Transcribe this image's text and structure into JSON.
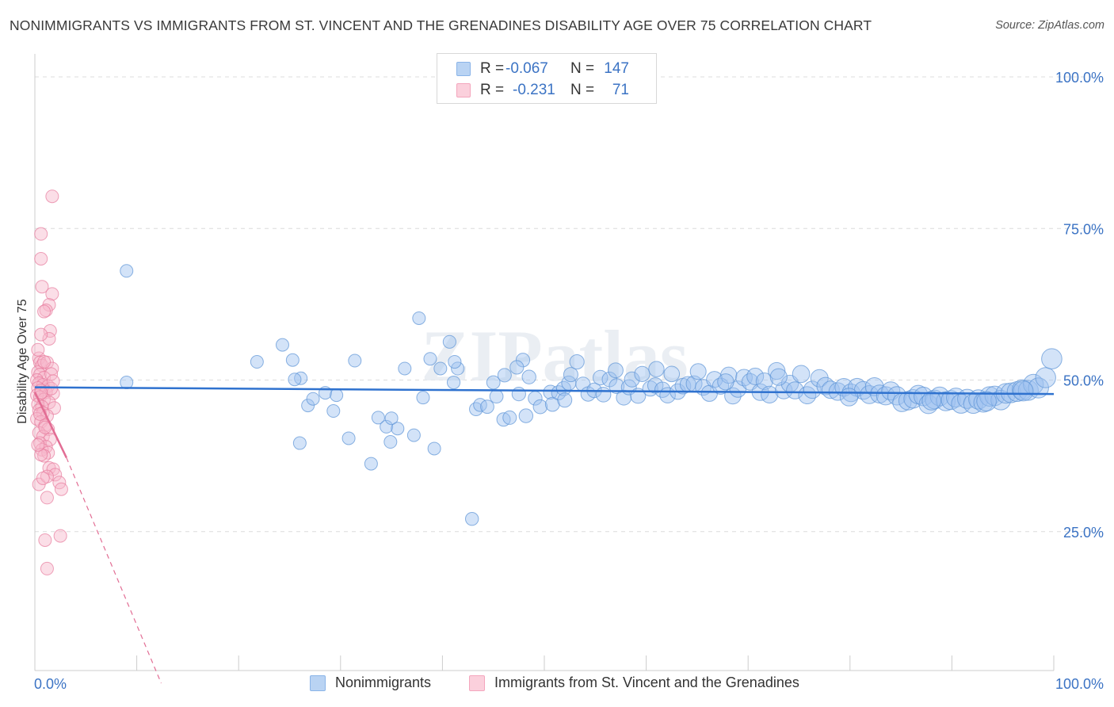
{
  "title": "NONIMMIGRANTS VS IMMIGRANTS FROM ST. VINCENT AND THE GRENADINES DISABILITY AGE OVER 75 CORRELATION CHART",
  "source": "Source: ZipAtlas.com",
  "legend_stats": [
    {
      "r_label": "R =",
      "r_value": "-0.067",
      "n_label": "N =",
      "n_value": "147",
      "color": "#8ab4e8"
    },
    {
      "r_label": "R =",
      "r_value": "-0.231",
      "n_label": "N =",
      "n_value": "71",
      "color": "#f4a6bd"
    }
  ],
  "bottom_legend": [
    {
      "label": "Nonimmigrants",
      "color": "#8ab4e8"
    },
    {
      "label": "Immigrants from St. Vincent and the Grenadines",
      "color": "#f4a6bd"
    }
  ],
  "colors": {
    "blue_fill": "#9ec2ef",
    "blue_stroke": "#5b93d6",
    "blue_line": "#2f72cf",
    "pink_fill": "#f7b6c9",
    "pink_stroke": "#e77a9c",
    "pink_line": "#e26d94",
    "tick_text": "#3b73c4",
    "grid": "#dcdcdc"
  },
  "chart_data": {
    "type": "scatter",
    "title": "NONIMMIGRANTS VS IMMIGRANTS FROM ST. VINCENT AND THE GRENADINES DISABILITY AGE OVER 75 CORRELATION CHART",
    "xlabel": "",
    "ylabel": "Disability Age Over 75",
    "xlim": [
      0,
      100
    ],
    "ylim": [
      0,
      100
    ],
    "x_tick_labels": [
      "0.0%",
      "100.0%"
    ],
    "y_ticks": [
      25,
      50,
      75,
      100
    ],
    "y_tick_labels": [
      "25.0%",
      "50.0%",
      "75.0%",
      "100.0%"
    ],
    "watermark": "ZIPatlas",
    "series": [
      {
        "name": "Nonimmigrants",
        "r": -0.067,
        "n": 147,
        "trend": {
          "x0": 0,
          "y0": 48.8,
          "x1": 100,
          "y1": 47.7
        },
        "points": [
          [
            9.0,
            68.0
          ],
          [
            9.0,
            49.6
          ],
          [
            21.8,
            53.0
          ],
          [
            24.3,
            55.8
          ],
          [
            25.3,
            53.3
          ],
          [
            26.1,
            50.3
          ],
          [
            25.5,
            50.1
          ],
          [
            26.0,
            39.6
          ],
          [
            26.8,
            45.8
          ],
          [
            27.3,
            46.9
          ],
          [
            28.5,
            47.9
          ],
          [
            29.3,
            44.9
          ],
          [
            29.6,
            47.5
          ],
          [
            30.8,
            40.4
          ],
          [
            31.4,
            53.2
          ],
          [
            33.0,
            36.2
          ],
          [
            33.7,
            43.8
          ],
          [
            34.5,
            42.3
          ],
          [
            34.9,
            39.8
          ],
          [
            35.0,
            43.7
          ],
          [
            35.6,
            42.0
          ],
          [
            36.3,
            51.9
          ],
          [
            37.2,
            40.9
          ],
          [
            37.7,
            60.2
          ],
          [
            38.1,
            47.1
          ],
          [
            38.8,
            53.5
          ],
          [
            39.2,
            38.7
          ],
          [
            39.8,
            51.9
          ],
          [
            40.7,
            56.3
          ],
          [
            41.1,
            49.6
          ],
          [
            41.5,
            51.9
          ],
          [
            41.2,
            53.0
          ],
          [
            42.9,
            27.1
          ],
          [
            43.3,
            45.2
          ],
          [
            43.7,
            45.9
          ],
          [
            44.4,
            45.6
          ],
          [
            45.0,
            49.6
          ],
          [
            45.3,
            47.3
          ],
          [
            46.1,
            50.8
          ],
          [
            46.0,
            43.5
          ],
          [
            46.6,
            43.8
          ],
          [
            47.5,
            47.7
          ],
          [
            48.2,
            44.1
          ],
          [
            47.9,
            53.3
          ],
          [
            48.5,
            50.5
          ],
          [
            49.1,
            47.0
          ],
          [
            49.6,
            45.6
          ],
          [
            50.6,
            48.0
          ],
          [
            50.8,
            46.0
          ],
          [
            51.4,
            47.9
          ],
          [
            51.9,
            48.6
          ],
          [
            52.4,
            49.5
          ],
          [
            52.6,
            50.9
          ],
          [
            53.2,
            53.0
          ],
          [
            53.8,
            49.3
          ],
          [
            54.3,
            47.7
          ],
          [
            54.9,
            48.3
          ],
          [
            55.5,
            50.4
          ],
          [
            55.8,
            47.6
          ],
          [
            56.4,
            50.1
          ],
          [
            57.1,
            49.0
          ],
          [
            57.8,
            47.1
          ],
          [
            58.3,
            48.8
          ],
          [
            58.6,
            50.1
          ],
          [
            59.2,
            47.4
          ],
          [
            59.6,
            51.0
          ],
          [
            60.4,
            48.6
          ],
          [
            60.9,
            49.1
          ],
          [
            61.6,
            48.4
          ],
          [
            62.1,
            47.5
          ],
          [
            62.5,
            51.0
          ],
          [
            63.1,
            48.1
          ],
          [
            63.6,
            49.0
          ],
          [
            64.1,
            49.3
          ],
          [
            64.7,
            49.4
          ],
          [
            65.1,
            51.4
          ],
          [
            65.6,
            48.8
          ],
          [
            66.2,
            47.8
          ],
          [
            66.7,
            50.1
          ],
          [
            67.3,
            49.0
          ],
          [
            68.1,
            50.8
          ],
          [
            68.5,
            47.4
          ],
          [
            69.0,
            48.5
          ],
          [
            69.6,
            50.4
          ],
          [
            70.2,
            49.7
          ],
          [
            70.7,
            50.6
          ],
          [
            71.2,
            48.0
          ],
          [
            71.6,
            49.8
          ],
          [
            72.1,
            47.6
          ],
          [
            72.8,
            51.5
          ],
          [
            73.5,
            48.3
          ],
          [
            74.1,
            49.4
          ],
          [
            74.6,
            48.3
          ],
          [
            75.2,
            51.0
          ],
          [
            75.8,
            47.5
          ],
          [
            76.3,
            48.4
          ],
          [
            77.0,
            50.3
          ],
          [
            77.6,
            49.0
          ],
          [
            78.1,
            48.4
          ],
          [
            78.8,
            48.1
          ],
          [
            79.4,
            48.8
          ],
          [
            80.1,
            47.9
          ],
          [
            80.7,
            48.8
          ],
          [
            81.3,
            48.3
          ],
          [
            81.9,
            47.6
          ],
          [
            82.4,
            48.9
          ],
          [
            82.9,
            47.7
          ],
          [
            83.5,
            47.4
          ],
          [
            84.0,
            48.2
          ],
          [
            84.6,
            47.4
          ],
          [
            85.1,
            46.3
          ],
          [
            85.7,
            46.6
          ],
          [
            86.2,
            46.9
          ],
          [
            86.7,
            47.6
          ],
          [
            87.2,
            47.3
          ],
          [
            87.7,
            46.0
          ],
          [
            88.3,
            46.8
          ],
          [
            88.8,
            47.3
          ],
          [
            89.4,
            46.5
          ],
          [
            89.9,
            46.7
          ],
          [
            90.4,
            47.1
          ],
          [
            90.9,
            46.1
          ],
          [
            91.5,
            46.9
          ],
          [
            92.1,
            46.1
          ],
          [
            92.6,
            46.8
          ],
          [
            93.1,
            46.3
          ],
          [
            93.7,
            47.3
          ],
          [
            94.2,
            47.4
          ],
          [
            94.8,
            46.7
          ],
          [
            95.3,
            47.8
          ],
          [
            95.8,
            47.9
          ],
          [
            96.4,
            48.1
          ],
          [
            96.9,
            48.4
          ],
          [
            97.5,
            48.3
          ],
          [
            98.0,
            49.3
          ],
          [
            98.5,
            48.7
          ],
          [
            99.2,
            50.4
          ],
          [
            99.8,
            53.5
          ],
          [
            47.3,
            52.1
          ],
          [
            52.0,
            46.7
          ],
          [
            57.0,
            51.6
          ],
          [
            61.0,
            51.8
          ],
          [
            67.8,
            49.7
          ],
          [
            73.0,
            50.5
          ],
          [
            79.9,
            47.2
          ],
          [
            88.0,
            46.6
          ],
          [
            93.4,
            46.5
          ],
          [
            97.0,
            48.2
          ]
        ]
      },
      {
        "name": "Immigrants from St. Vincent and the Grenadines",
        "r": -0.231,
        "n": 71,
        "trend": {
          "x0": 0,
          "y0": 48.0,
          "x1": 3.1,
          "y1": 37.2,
          "dash_to": {
            "x": 12.4,
            "y": 0
          }
        },
        "points": [
          [
            1.7,
            80.3
          ],
          [
            0.6,
            74.1
          ],
          [
            0.6,
            70.0
          ],
          [
            0.7,
            65.4
          ],
          [
            1.7,
            64.2
          ],
          [
            1.4,
            62.4
          ],
          [
            1.1,
            61.5
          ],
          [
            0.9,
            61.3
          ],
          [
            1.5,
            58.1
          ],
          [
            1.4,
            56.8
          ],
          [
            0.6,
            57.5
          ],
          [
            0.4,
            53.6
          ],
          [
            0.5,
            52.9
          ],
          [
            0.7,
            52.4
          ],
          [
            1.2,
            52.9
          ],
          [
            1.7,
            51.9
          ],
          [
            0.3,
            51.3
          ],
          [
            0.5,
            50.9
          ],
          [
            0.9,
            50.4
          ],
          [
            0.2,
            50.0
          ],
          [
            0.4,
            49.5
          ],
          [
            0.8,
            49.2
          ],
          [
            1.3,
            49.0
          ],
          [
            0.3,
            48.7
          ],
          [
            0.6,
            48.3
          ],
          [
            1.1,
            48.0
          ],
          [
            1.8,
            47.8
          ],
          [
            0.2,
            47.5
          ],
          [
            0.5,
            47.2
          ],
          [
            0.9,
            46.8
          ],
          [
            1.4,
            46.3
          ],
          [
            0.3,
            46.0
          ],
          [
            0.7,
            45.6
          ],
          [
            1.9,
            45.4
          ],
          [
            0.4,
            45.0
          ],
          [
            0.8,
            44.6
          ],
          [
            1.2,
            44.1
          ],
          [
            0.2,
            43.6
          ],
          [
            0.6,
            43.1
          ],
          [
            1.0,
            42.5
          ],
          [
            1.3,
            41.9
          ],
          [
            0.4,
            41.3
          ],
          [
            0.8,
            40.7
          ],
          [
            1.5,
            40.2
          ],
          [
            0.5,
            39.6
          ],
          [
            1.1,
            39.0
          ],
          [
            0.7,
            38.5
          ],
          [
            1.3,
            38.0
          ],
          [
            0.9,
            37.5
          ],
          [
            0.6,
            37.7
          ],
          [
            1.4,
            35.5
          ],
          [
            1.8,
            35.3
          ],
          [
            2.0,
            34.4
          ],
          [
            2.4,
            33.1
          ],
          [
            0.4,
            32.8
          ],
          [
            1.2,
            34.1
          ],
          [
            2.6,
            32.0
          ],
          [
            0.8,
            33.8
          ],
          [
            1.2,
            30.6
          ],
          [
            2.5,
            24.3
          ],
          [
            1.0,
            23.6
          ],
          [
            1.2,
            18.9
          ],
          [
            0.3,
            55.0
          ],
          [
            1.6,
            48.6
          ],
          [
            0.5,
            44.4
          ],
          [
            1.0,
            42.2
          ],
          [
            0.3,
            39.3
          ],
          [
            1.6,
            51.0
          ],
          [
            0.9,
            53.0
          ],
          [
            0.6,
            47.9
          ],
          [
            1.8,
            49.8
          ]
        ]
      }
    ]
  }
}
